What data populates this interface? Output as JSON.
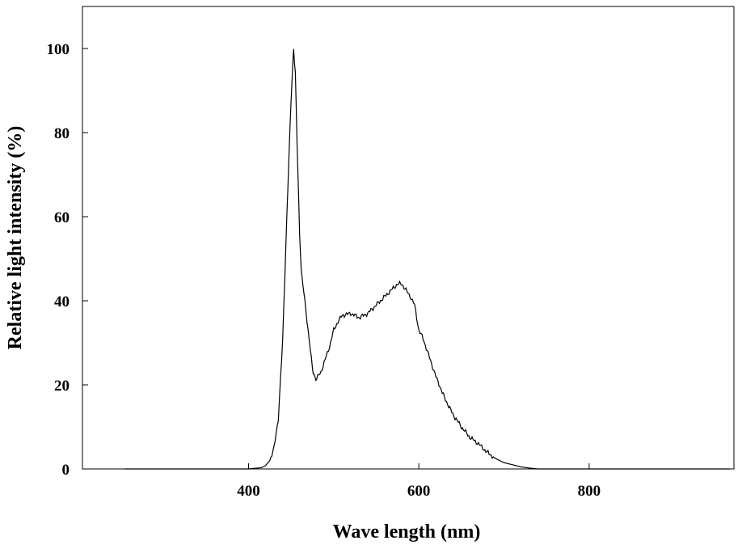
{
  "chart_data": {
    "type": "line",
    "title": "",
    "xlabel": "Wave length (nm)",
    "ylabel": "Relative light intensity (%)",
    "xlim": [
      205,
      970
    ],
    "ylim": [
      0,
      110
    ],
    "x_ticks": [
      400,
      600,
      800
    ],
    "y_ticks": [
      0,
      20,
      40,
      60,
      80,
      100
    ],
    "grid": false,
    "legend": "none",
    "line_color": "#000000",
    "series": [
      {
        "x": [
          255,
          300,
          350,
          400,
          415,
          420,
          425,
          430,
          435,
          440,
          445,
          450,
          453,
          455,
          457,
          460,
          462,
          465,
          470,
          475,
          478,
          480,
          485,
          490,
          495,
          500,
          505,
          510,
          520,
          530,
          540,
          550,
          560,
          570,
          575,
          580,
          585,
          590,
          595,
          600,
          605,
          610,
          615,
          620,
          630,
          640,
          650,
          660,
          670,
          680,
          690,
          700,
          710,
          720,
          730,
          740,
          750,
          800,
          900,
          965
        ],
        "y": [
          0,
          0,
          0,
          0,
          0.3,
          0.8,
          2,
          5,
          12,
          30,
          60,
          88,
          100,
          94,
          78,
          56,
          47,
          42,
          33,
          24,
          21.5,
          21.5,
          23,
          26,
          29,
          33,
          35,
          36.5,
          37,
          36,
          37,
          39,
          41,
          43,
          44,
          44,
          42.5,
          41,
          39,
          33,
          31,
          28,
          25,
          22,
          17,
          13,
          10,
          7.5,
          6,
          4,
          2.5,
          1.5,
          1,
          0.5,
          0.2,
          0,
          0,
          0,
          0,
          0
        ]
      }
    ]
  }
}
